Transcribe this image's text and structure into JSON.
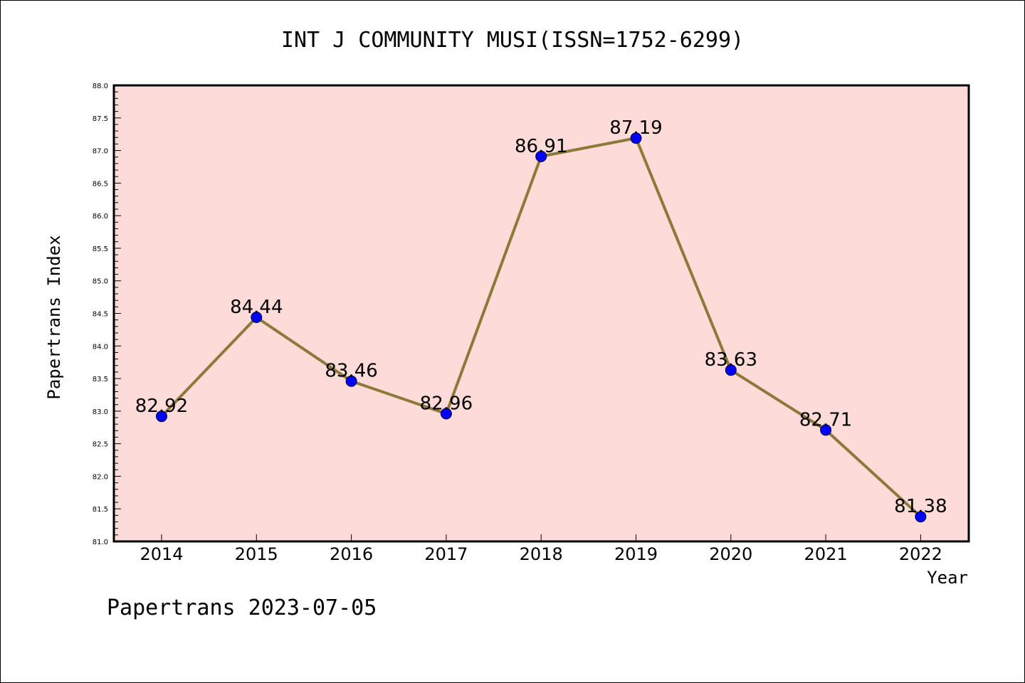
{
  "chart_data": {
    "type": "line",
    "title": "INT J COMMUNITY MUSI(ISSN=1752-6299)",
    "xlabel": "Year",
    "ylabel": "Papertrans Index",
    "categories": [
      "2014",
      "2015",
      "2016",
      "2017",
      "2018",
      "2019",
      "2020",
      "2021",
      "2022"
    ],
    "series": [
      {
        "values": [
          82.92,
          84.44,
          83.46,
          82.96,
          86.91,
          87.19,
          83.63,
          82.71,
          81.38
        ],
        "data_labels": [
          "82.92",
          "84.44",
          "83.46",
          "82.96",
          "86.91",
          "87.19",
          "83.63",
          "82.71",
          "81.38"
        ]
      }
    ],
    "ylim": [
      81.0,
      88.0
    ],
    "yticks": [
      "81.0",
      "81.5",
      "82.0",
      "82.5",
      "83.0",
      "83.5",
      "84.0",
      "84.5",
      "85.0",
      "85.5",
      "86.0",
      "86.5",
      "87.0",
      "87.5",
      "88.0"
    ],
    "grid": false,
    "colors": {
      "plot_background": "#fddbd8",
      "line": "#8b7a3a",
      "marker": "#0000ff"
    }
  },
  "footer": "Papertrans 2023-07-05"
}
